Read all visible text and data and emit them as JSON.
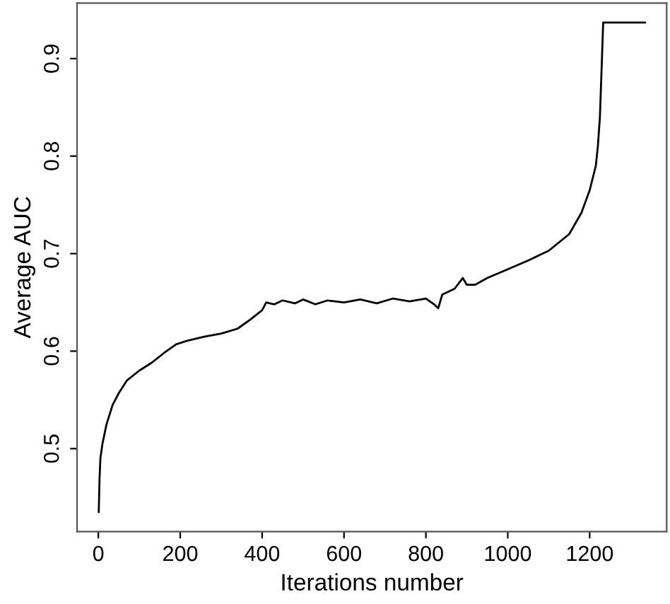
{
  "chart_data": {
    "type": "line",
    "xlabel": "Iterations number",
    "ylabel": "Average AUC",
    "x": [
      1,
      3,
      5,
      10,
      20,
      35,
      50,
      70,
      100,
      130,
      160,
      190,
      220,
      260,
      300,
      340,
      370,
      400,
      410,
      430,
      450,
      480,
      500,
      530,
      560,
      600,
      640,
      680,
      720,
      760,
      800,
      820,
      830,
      840,
      870,
      890,
      900,
      920,
      950,
      1000,
      1050,
      1100,
      1150,
      1180,
      1200,
      1215,
      1220,
      1225,
      1230,
      1233,
      1260,
      1300,
      1335
    ],
    "series": [
      {
        "color": "#000000",
        "values": [
          0.435,
          0.47,
          0.49,
          0.505,
          0.525,
          0.545,
          0.557,
          0.57,
          0.58,
          0.588,
          0.598,
          0.607,
          0.611,
          0.615,
          0.618,
          0.623,
          0.632,
          0.642,
          0.65,
          0.648,
          0.652,
          0.649,
          0.653,
          0.648,
          0.652,
          0.65,
          0.653,
          0.649,
          0.654,
          0.651,
          0.654,
          0.648,
          0.644,
          0.658,
          0.664,
          0.675,
          0.668,
          0.668,
          0.675,
          0.684,
          0.693,
          0.703,
          0.72,
          0.742,
          0.765,
          0.79,
          0.81,
          0.84,
          0.9,
          0.937,
          0.937,
          0.937,
          0.937
        ]
      }
    ],
    "xlim": [
      -52,
      1388
    ],
    "ylim": [
      0.415,
      0.957
    ],
    "xticks": [
      0,
      200,
      400,
      600,
      800,
      1000,
      1200
    ],
    "yticks": [
      0.5,
      0.6,
      0.7,
      0.8,
      0.9
    ],
    "grid": false,
    "legend": false,
    "marker": "none",
    "line_style": "solid"
  }
}
